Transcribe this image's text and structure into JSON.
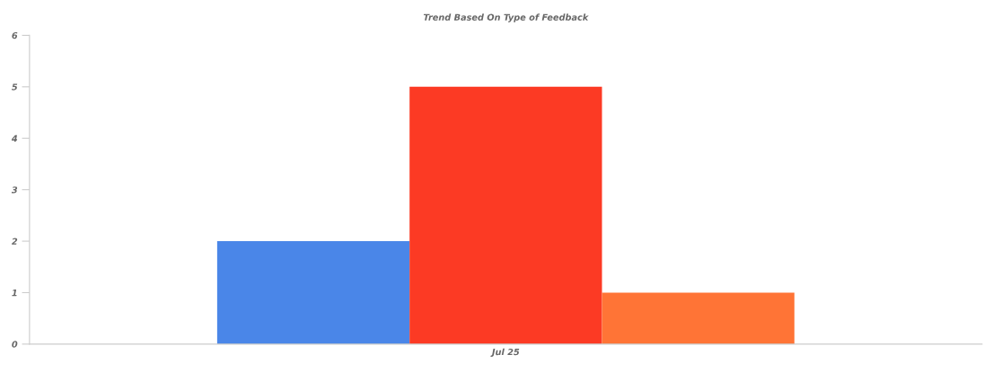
{
  "chart_data": {
    "type": "bar",
    "title": "Trend Based On Type of Feedback",
    "categories": [
      "Jul 25"
    ],
    "series": [
      {
        "color": "#4a86e8",
        "values": [
          2
        ]
      },
      {
        "color": "#fc3a24",
        "values": [
          5
        ]
      },
      {
        "color": "#ff7436",
        "values": [
          1
        ]
      }
    ],
    "ylim": [
      0,
      6
    ],
    "yticks": [
      0,
      1,
      2,
      3,
      4,
      5,
      6
    ],
    "grid": false
  }
}
